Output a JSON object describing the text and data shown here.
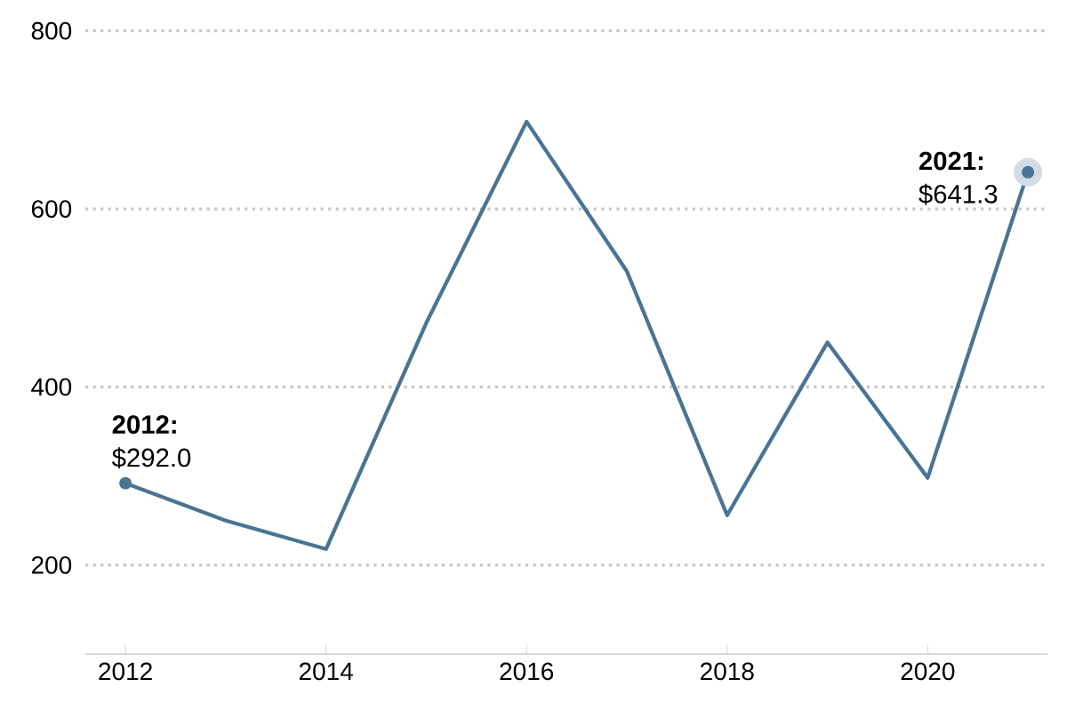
{
  "chart_data": {
    "type": "line",
    "x": [
      2012,
      2013,
      2014,
      2015,
      2016,
      2017,
      2018,
      2019,
      2020,
      2021
    ],
    "series": [
      {
        "color": "#4a7494",
        "values": [
          292.0,
          250,
          218,
          472,
          698,
          530,
          256,
          450,
          298,
          641.3
        ]
      }
    ],
    "xlim": [
      2011.6,
      2021.2
    ],
    "ylim": [
      100,
      800
    ],
    "xticks": [
      2012,
      2014,
      2016,
      2018,
      2020
    ],
    "yticks": [
      200,
      400,
      600,
      800
    ],
    "grid": "y",
    "marker": "none",
    "line_style": "solid",
    "annotations": [
      {
        "text": "**2012:** $292.0",
        "x": 2012,
        "y": 292.0
      },
      {
        "text": "**2021:** $641.3",
        "x": 2021,
        "y": 641.3
      }
    ]
  }
}
